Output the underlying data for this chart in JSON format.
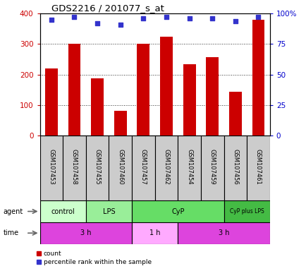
{
  "title": "GDS2216 / 201077_s_at",
  "samples": [
    "GSM107453",
    "GSM107458",
    "GSM107455",
    "GSM107460",
    "GSM107457",
    "GSM107462",
    "GSM107454",
    "GSM107459",
    "GSM107456",
    "GSM107461"
  ],
  "counts": [
    220,
    302,
    188,
    80,
    302,
    323,
    233,
    258,
    143,
    380
  ],
  "percentile_ranks": [
    95,
    97,
    92,
    91,
    96,
    97,
    96,
    96,
    94,
    97
  ],
  "ylim_left": [
    0,
    400
  ],
  "ylim_right": [
    0,
    100
  ],
  "yticks_left": [
    0,
    100,
    200,
    300,
    400
  ],
  "yticks_right": [
    0,
    25,
    50,
    75,
    100
  ],
  "ytick_labels_right": [
    "0",
    "25",
    "50",
    "75",
    "100%"
  ],
  "bar_color": "#cc0000",
  "dot_color": "#3333cc",
  "agent_groups": [
    {
      "label": "control",
      "start": 0,
      "end": 2,
      "color": "#ccffcc"
    },
    {
      "label": "LPS",
      "start": 2,
      "end": 4,
      "color": "#99ee99"
    },
    {
      "label": "CyP",
      "start": 4,
      "end": 8,
      "color": "#66dd66"
    },
    {
      "label": "CyP plus LPS",
      "start": 8,
      "end": 10,
      "color": "#44bb44"
    }
  ],
  "time_groups": [
    {
      "label": "3 h",
      "start": 0,
      "end": 4,
      "color": "#dd44dd"
    },
    {
      "label": "1 h",
      "start": 4,
      "end": 6,
      "color": "#ffaaff"
    },
    {
      "label": "3 h",
      "start": 6,
      "end": 10,
      "color": "#dd44dd"
    }
  ],
  "plot_bg_color": "#ffffff",
  "label_bg_color": "#cccccc",
  "grid_dotted_color": "#333333"
}
